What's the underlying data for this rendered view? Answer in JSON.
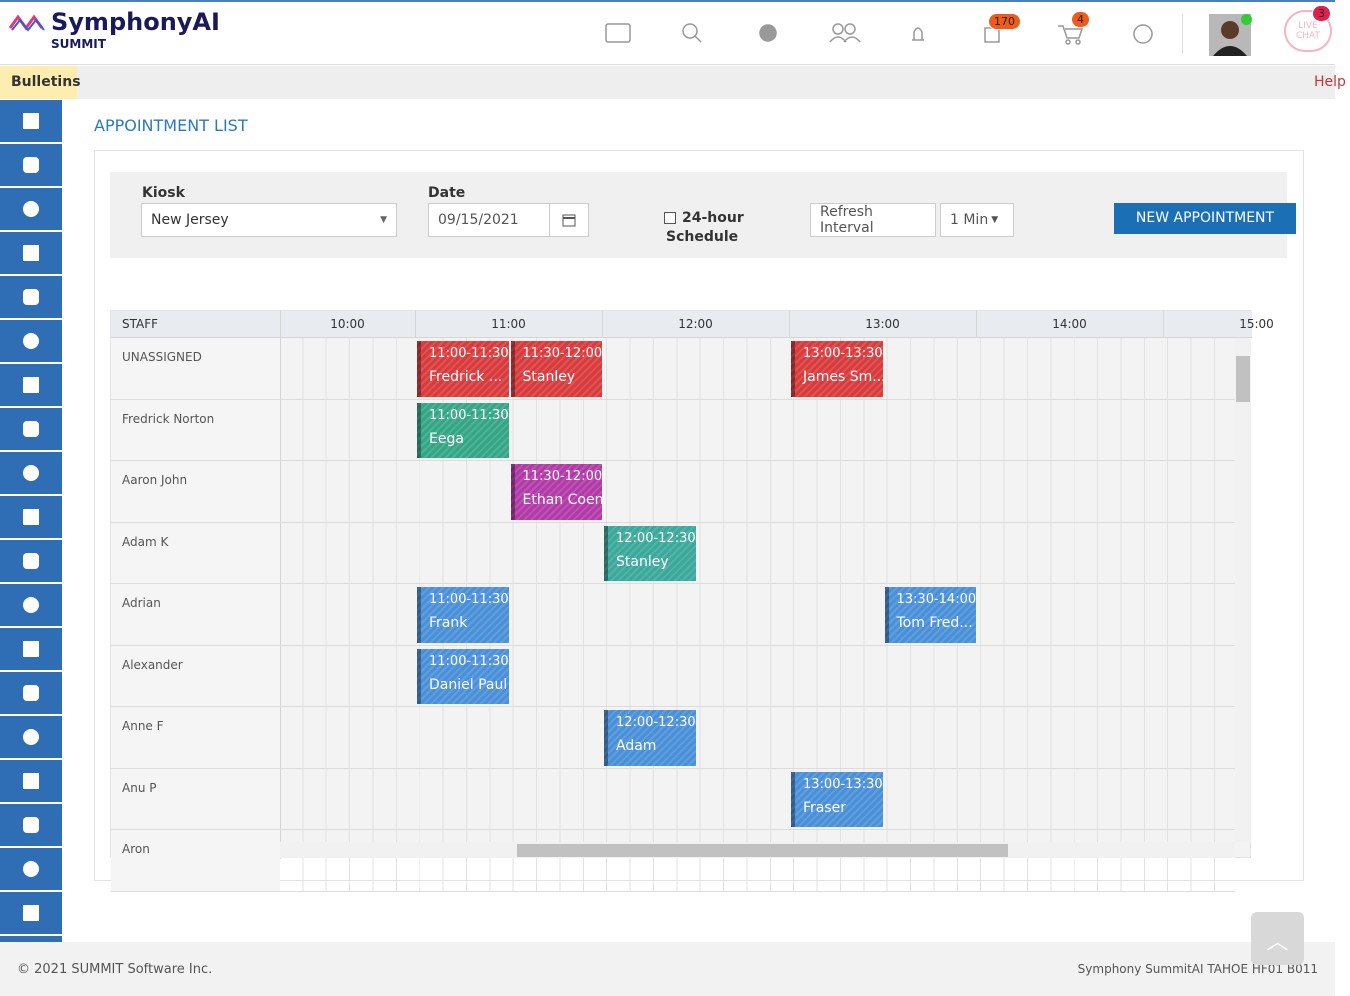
{
  "header": {
    "brand": "SymphonyAI",
    "sub": "SUMMIT",
    "notifications_badge": "170",
    "cart_badge": "4",
    "chat_badge": "3",
    "live_chat": "LIVE CHAT"
  },
  "nav": {
    "bulletins": "Bulletins",
    "help": "Help"
  },
  "page_title": "APPOINTMENT LIST",
  "filters": {
    "kiosk_label": "Kiosk",
    "kiosk_value": "New Jersey",
    "date_label": "Date",
    "date_value": "09/15/2021",
    "schedule_label": "24-hour Schedule",
    "refresh_label": "Refresh Interval",
    "refresh_value": "1 Min",
    "new_button": "NEW APPOINTMENT"
  },
  "schedule": {
    "staff_header": "STAFF",
    "times": [
      "10:00",
      "11:00",
      "12:00",
      "13:00",
      "14:00",
      "15:00"
    ],
    "rows": [
      {
        "name": "UNASSIGNED",
        "appointments": [
          {
            "time": "11:00-11:30",
            "who": "Fredrick ...",
            "color": "#d93b3d"
          },
          {
            "time": "11:30-12:00",
            "who": "Stanley",
            "color": "#d93b3d"
          },
          {
            "time": "13:00-13:30",
            "who": "James Sm...",
            "color": "#d93b3d"
          }
        ]
      },
      {
        "name": "Fredrick Norton",
        "appointments": [
          {
            "time": "11:00-11:30",
            "who": "Eega",
            "color": "#34a685"
          }
        ]
      },
      {
        "name": "Aaron John",
        "appointments": [
          {
            "time": "11:30-12:00",
            "who": "Ethan Coen",
            "color": "#b23aa8"
          }
        ]
      },
      {
        "name": "Adam K",
        "appointments": [
          {
            "time": "12:00-12:30",
            "who": "Stanley",
            "color": "#3aa89a"
          }
        ]
      },
      {
        "name": "Adrian",
        "appointments": [
          {
            "time": "11:00-11:30",
            "who": "Frank",
            "color": "#4a90d9"
          },
          {
            "time": "13:30-14:00",
            "who": "Tom Fred...",
            "color": "#4a90d9"
          }
        ]
      },
      {
        "name": "Alexander",
        "appointments": [
          {
            "time": "11:00-11:30",
            "who": "Daniel Paul",
            "color": "#4a90d9"
          }
        ]
      },
      {
        "name": "Anne F",
        "appointments": [
          {
            "time": "12:00-12:30",
            "who": "Adam",
            "color": "#4a90d9"
          }
        ]
      },
      {
        "name": "Anu P",
        "appointments": [
          {
            "time": "13:00-13:30",
            "who": "Fraser",
            "color": "#4a90d9"
          }
        ]
      },
      {
        "name": "Aron",
        "appointments": []
      }
    ]
  },
  "footer": {
    "copyright": "© 2021 SUMMIT Software Inc.",
    "version": "Symphony SummitAI TAHOE HF01 B011"
  }
}
